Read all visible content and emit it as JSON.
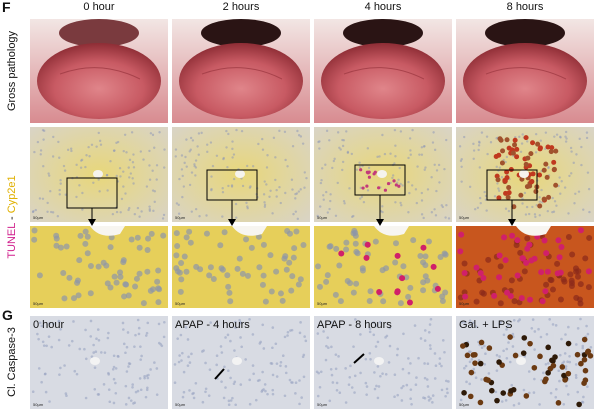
{
  "panel_f": {
    "label": "F",
    "column_headers": [
      "0 hour",
      "2 hours",
      "4 hours",
      "8 hours"
    ],
    "row_labels": {
      "gross": "Gross pathology",
      "stain_tunel": "TUNEL",
      "stain_separator": " - ",
      "stain_cyp": "Cyp2e1"
    }
  },
  "panel_g": {
    "label": "G",
    "row_label": "Cl. Caspase-3",
    "panel_labels": [
      "0 hour",
      "APAP - 4 hours",
      "APAP - 8 hours",
      "Gal. + LPS"
    ]
  },
  "scale_bar": "50µm"
}
